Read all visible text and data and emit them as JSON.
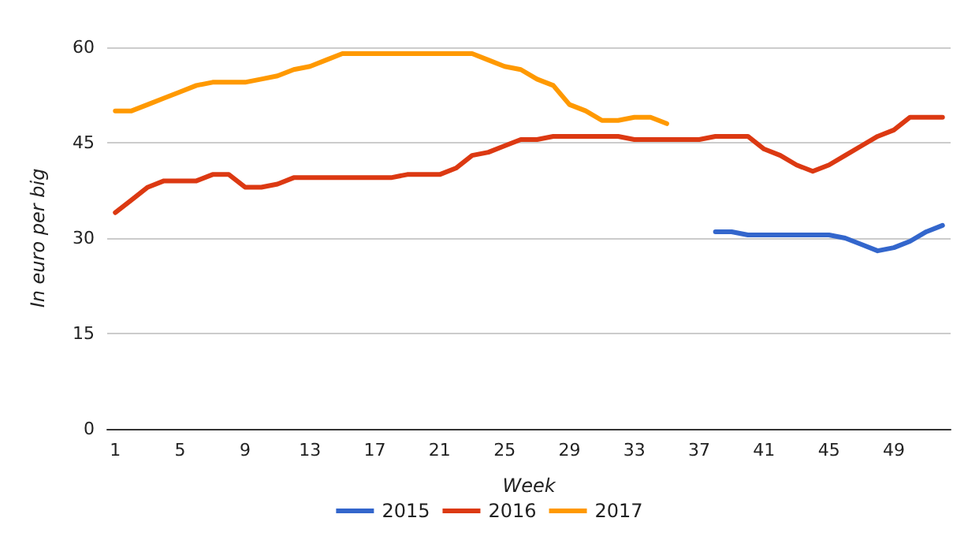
{
  "chart_data": {
    "type": "line",
    "xlabel": "Week",
    "ylabel": "In euro per big",
    "xlim": [
      0.5,
      52.5
    ],
    "xticks": [
      1,
      5,
      9,
      13,
      17,
      21,
      25,
      29,
      33,
      37,
      41,
      45,
      49
    ],
    "ylim": [
      0,
      60
    ],
    "yticks": [
      0,
      15,
      30,
      45,
      60
    ],
    "grid": "y",
    "legend": "bottom",
    "marker": "none",
    "line_style": "solid",
    "series": [
      {
        "name": "2015",
        "color": "#3366cc",
        "x": [
          38,
          39,
          40,
          41,
          42,
          43,
          44,
          45,
          46,
          47,
          48,
          49,
          50,
          51,
          52
        ],
        "values": [
          31,
          31,
          30.5,
          30.5,
          30.5,
          30.5,
          30.5,
          30.5,
          30,
          29,
          28,
          28.5,
          29.5,
          31,
          32
        ]
      },
      {
        "name": "2016",
        "color": "#dc3912",
        "x": [
          1,
          2,
          3,
          4,
          5,
          6,
          7,
          8,
          9,
          10,
          11,
          12,
          13,
          14,
          15,
          16,
          17,
          18,
          19,
          20,
          21,
          22,
          23,
          24,
          25,
          26,
          27,
          28,
          29,
          30,
          31,
          32,
          33,
          34,
          35,
          36,
          37,
          38,
          39,
          40,
          41,
          42,
          43,
          44,
          45,
          46,
          47,
          48,
          49,
          50,
          51,
          52
        ],
        "values": [
          34,
          36,
          38,
          39,
          39,
          39,
          40,
          40,
          38,
          38,
          38.5,
          39.5,
          39.5,
          39.5,
          39.5,
          39.5,
          39.5,
          39.5,
          40,
          40,
          40,
          41,
          43,
          43.5,
          44.5,
          45.5,
          45.5,
          46,
          46,
          46,
          46,
          46,
          45.5,
          45.5,
          45.5,
          45.5,
          45.5,
          46,
          46,
          46,
          44,
          43,
          41.5,
          40.5,
          41.5,
          43,
          44.5,
          46,
          47,
          49,
          49,
          49
        ]
      },
      {
        "name": "2017",
        "color": "#ff9900",
        "x": [
          1,
          2,
          3,
          4,
          5,
          6,
          7,
          8,
          9,
          10,
          11,
          12,
          13,
          14,
          15,
          16,
          17,
          18,
          19,
          20,
          21,
          22,
          23,
          24,
          25,
          26,
          27,
          28,
          29,
          30,
          31,
          32,
          33,
          34,
          35
        ],
        "values": [
          50,
          50,
          51,
          52,
          53,
          54,
          54.5,
          54.5,
          54.5,
          55,
          55.5,
          56.5,
          57,
          58,
          59,
          59,
          59,
          59,
          59,
          59,
          59,
          59,
          59,
          58,
          57,
          56.5,
          55,
          54,
          51,
          50,
          48.5,
          48.5,
          49,
          49,
          48
        ]
      }
    ]
  }
}
